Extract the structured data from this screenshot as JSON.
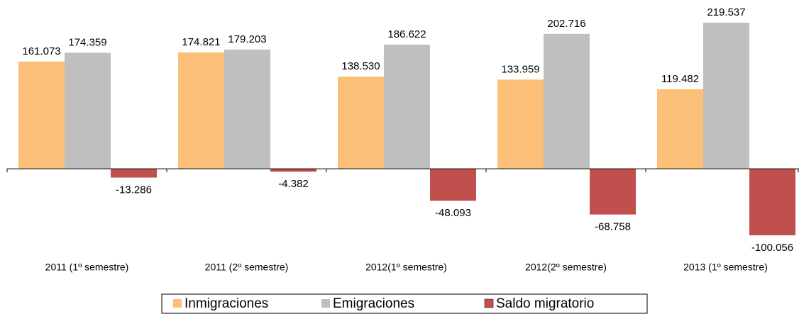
{
  "chart_data": {
    "type": "bar",
    "categories": [
      "2011 (1º semestre)",
      "2011 (2º semestre)",
      "2012(1º semestre)",
      "2012(2º semestre)",
      "2013 (1º semestre)"
    ],
    "series": [
      {
        "name": "Inmigraciones",
        "color": "#fbbf77",
        "values": [
          161073,
          174821,
          138530,
          133959,
          119482
        ],
        "value_labels": [
          "161.073",
          "174.821",
          "138.530",
          "133.959",
          "119.482"
        ]
      },
      {
        "name": "Emigraciones",
        "color": "#bfbfbf",
        "values": [
          174359,
          179203,
          186622,
          202716,
          219537
        ],
        "value_labels": [
          "174.359",
          "179.203",
          "186.622",
          "202.716",
          "219.537"
        ]
      },
      {
        "name": "Saldo migratorio",
        "color": "#c0504d",
        "values": [
          -13286,
          -4382,
          -48093,
          -68758,
          -100056
        ],
        "value_labels": [
          "-13.286",
          "-4.382",
          "-48.093",
          "-68.758",
          "-100.056"
        ]
      }
    ],
    "legend": "bottom"
  }
}
